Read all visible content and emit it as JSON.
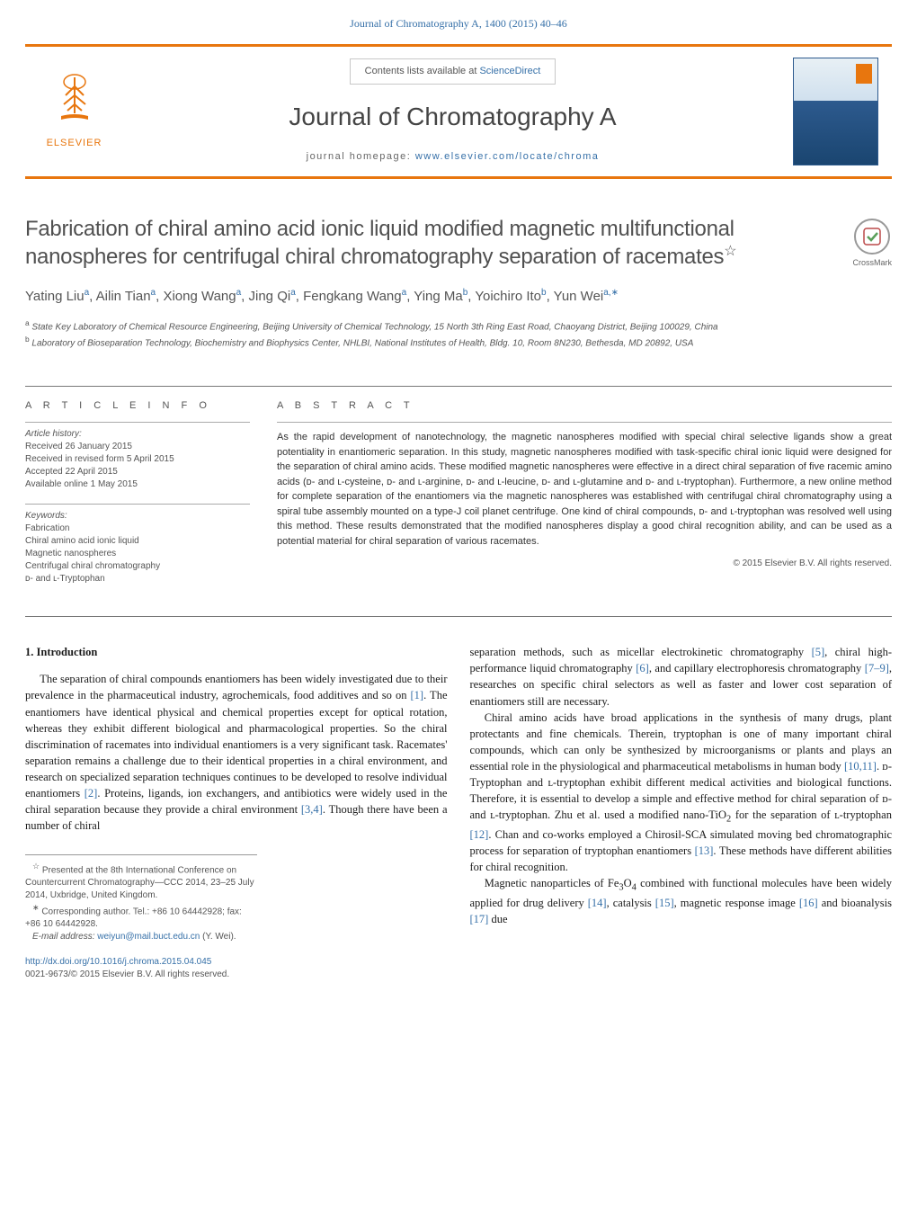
{
  "header_citation": "Journal of Chromatography A, 1400 (2015) 40–46",
  "banner": {
    "publisher": "ELSEVIER",
    "contents_prefix": "Contents lists available at ",
    "contents_link": "ScienceDirect",
    "journal_name": "Journal of Chromatography A",
    "homepage_prefix": "journal homepage: ",
    "homepage_url": "www.elsevier.com/locate/chroma"
  },
  "crossmark_label": "CrossMark",
  "article": {
    "title": "Fabrication of chiral amino acid ionic liquid modified magnetic multifunctional nanospheres for centrifugal chiral chromatography separation of racemates",
    "title_footnote_mark": "☆",
    "authors_html": "Yating Liu<sup>a</sup>, Ailin Tian<sup>a</sup>, Xiong Wang<sup>a</sup>, Jing Qi<sup>a</sup>, Fengkang Wang<sup>a</sup>, Ying Ma<sup>b</sup>, Yoichiro Ito<sup>b</sup>, Yun Wei<sup>a,∗</sup>",
    "affiliations": [
      {
        "label": "a",
        "text": "State Key Laboratory of Chemical Resource Engineering, Beijing University of Chemical Technology, 15 North 3th Ring East Road, Chaoyang District, Beijing 100029, China"
      },
      {
        "label": "b",
        "text": "Laboratory of Bioseparation Technology, Biochemistry and Biophysics Center, NHLBI, National Institutes of Health, Bldg. 10, Room 8N230, Bethesda, MD 20892, USA"
      }
    ]
  },
  "info": {
    "heading": "A R T I C L E   I N F O",
    "history_label": "Article history:",
    "history": [
      "Received 26 January 2015",
      "Received in revised form 5 April 2015",
      "Accepted 22 April 2015",
      "Available online 1 May 2015"
    ],
    "keywords_label": "Keywords:",
    "keywords": [
      "Fabrication",
      "Chiral amino acid ionic liquid",
      "Magnetic nanospheres",
      "Centrifugal chiral chromatography",
      "ᴅ- and ʟ-Tryptophan"
    ]
  },
  "abstract": {
    "heading": "A B S T R A C T",
    "body": "As the rapid development of nanotechnology, the magnetic nanospheres modified with special chiral selective ligands show a great potentiality in enantiomeric separation. In this study, magnetic nanospheres modified with task-specific chiral ionic liquid were designed for the separation of chiral amino acids. These modified magnetic nanospheres were effective in a direct chiral separation of five racemic amino acids (ᴅ- and ʟ-cysteine, ᴅ- and ʟ-arginine, ᴅ- and ʟ-leucine, ᴅ- and ʟ-glutamine and ᴅ- and ʟ-tryptophan). Furthermore, a new online method for complete separation of the enantiomers via the magnetic nanospheres was established with centrifugal chiral chromatography using a spiral tube assembly mounted on a type-J coil planet centrifuge. One kind of chiral compounds, ᴅ- and ʟ-tryptophan was resolved well using this method. These results demonstrated that the modified nanospheres display a good chiral recognition ability, and can be used as a potential material for chiral separation of various racemates.",
    "copyright": "© 2015 Elsevier B.V. All rights reserved."
  },
  "body": {
    "section_number": "1.",
    "section_title": "Introduction",
    "left_paragraphs": [
      "The separation of chiral compounds enantiomers has been widely investigated due to their prevalence in the pharmaceutical industry, agrochemicals, food additives and so on <span class='ref'>[1]</span>. The enantiomers have identical physical and chemical properties except for optical rotation, whereas they exhibit different biological and pharmacological properties. So the chiral discrimination of racemates into individual enantiomers is a very significant task. Racemates' separation remains a challenge due to their identical properties in a chiral environment, and research on specialized separation techniques continues to be developed to resolve individual enantiomers <span class='ref'>[2]</span>. Proteins, ligands, ion exchangers, and antibiotics were widely used in the chiral separation because they provide a chiral environment <span class='ref'>[3,4]</span>. Though there have been a number of chiral"
    ],
    "right_paragraphs": [
      "separation methods, such as micellar electrokinetic chromatography <span class='ref'>[5]</span>, chiral high-performance liquid chromatography <span class='ref'>[6]</span>, and capillary electrophoresis chromatography <span class='ref'>[7–9]</span>, researches on specific chiral selectors as well as faster and lower cost separation of enantiomers still are necessary.",
      "Chiral amino acids have broad applications in the synthesis of many drugs, plant protectants and fine chemicals. Therein, tryptophan is one of many important chiral compounds, which can only be synthesized by microorganisms or plants and plays an essential role in the physiological and pharmaceutical metabolisms in human body <span class='ref'>[10,11]</span>. <span class='smallcaps'>ᴅ</span>-Tryptophan and <span class='smallcaps'>ʟ</span>-tryptophan exhibit different medical activities and biological functions. Therefore, it is essential to develop a simple and effective method for chiral separation of <span class='smallcaps'>ᴅ</span>- and <span class='smallcaps'>ʟ</span>-tryptophan. Zhu et al. used a modified nano-TiO<sub>2</sub> for the separation of <span class='smallcaps'>ʟ</span>-tryptophan <span class='ref'>[12]</span>. Chan and co-works employed a Chirosil-SCA simulated moving bed chromatographic process for separation of tryptophan enantiomers <span class='ref'>[13]</span>. These methods have different abilities for chiral recognition.",
      "Magnetic nanoparticles of Fe<sub>3</sub>O<sub>4</sub> combined with functional molecules have been widely applied for drug delivery <span class='ref'>[14]</span>, catalysis <span class='ref'>[15]</span>, magnetic response image <span class='ref'>[16]</span> and bioanalysis <span class='ref'>[17]</span> due"
    ]
  },
  "footnotes": {
    "conference": "Presented at the 8th International Conference on Countercurrent Chromatography—CCC 2014, 23–25 July 2014, Uxbridge, United Kingdom.",
    "corresponding": "Corresponding author. Tel.: +86 10 64442928; fax: +86 10 64442928.",
    "email_label": "E-mail address:",
    "email": "weiyun@mail.buct.edu.cn",
    "email_suffix": "(Y. Wei)."
  },
  "bottom": {
    "doi": "http://dx.doi.org/10.1016/j.chroma.2015.04.045",
    "issn_line": "0021-9673/© 2015 Elsevier B.V. All rights reserved."
  },
  "colors": {
    "accent_orange": "#e8760e",
    "link_blue": "#3670a8",
    "text_gray": "#555555",
    "border_gray": "#aaaaaa"
  }
}
